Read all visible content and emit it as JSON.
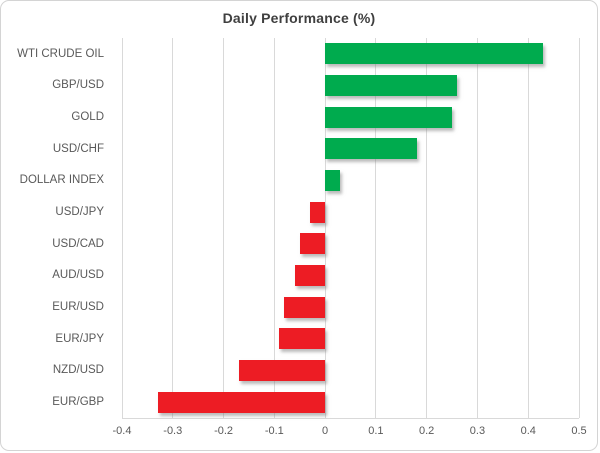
{
  "title": "Daily Performance (%)",
  "colors": {
    "positive_bar": "#00AB4E",
    "negative_bar": "#ED1C24",
    "gridline": "#D9D9D9",
    "axis_label": "#595959",
    "title_text": "#3F3F3F"
  },
  "chart_data": {
    "type": "bar",
    "orientation": "horizontal",
    "title": "Daily Performance (%)",
    "xlabel": "",
    "ylabel": "",
    "categories": [
      "WTI CRUDE OIL",
      "GBP/USD",
      "GOLD",
      "USD/CHF",
      "DOLLAR INDEX",
      "USD/JPY",
      "USD/CAD",
      "AUD/USD",
      "EUR/USD",
      "EUR/JPY",
      "NZD/USD",
      "EUR/GBP"
    ],
    "values": [
      0.43,
      0.26,
      0.25,
      0.18,
      0.03,
      -0.03,
      -0.05,
      -0.06,
      -0.08,
      -0.09,
      -0.17,
      -0.33
    ],
    "xlim": [
      -0.4,
      0.5
    ],
    "xticks": [
      -0.4,
      -0.3,
      -0.2,
      -0.1,
      0,
      0.1,
      0.2,
      0.3,
      0.4,
      0.5
    ],
    "xtick_labels": [
      "-0.4",
      "-0.3",
      "-0.2",
      "-0.1",
      "0",
      "0.1",
      "0.2",
      "0.3",
      "0.4",
      "0.5"
    ],
    "grid": true,
    "legend": false
  }
}
